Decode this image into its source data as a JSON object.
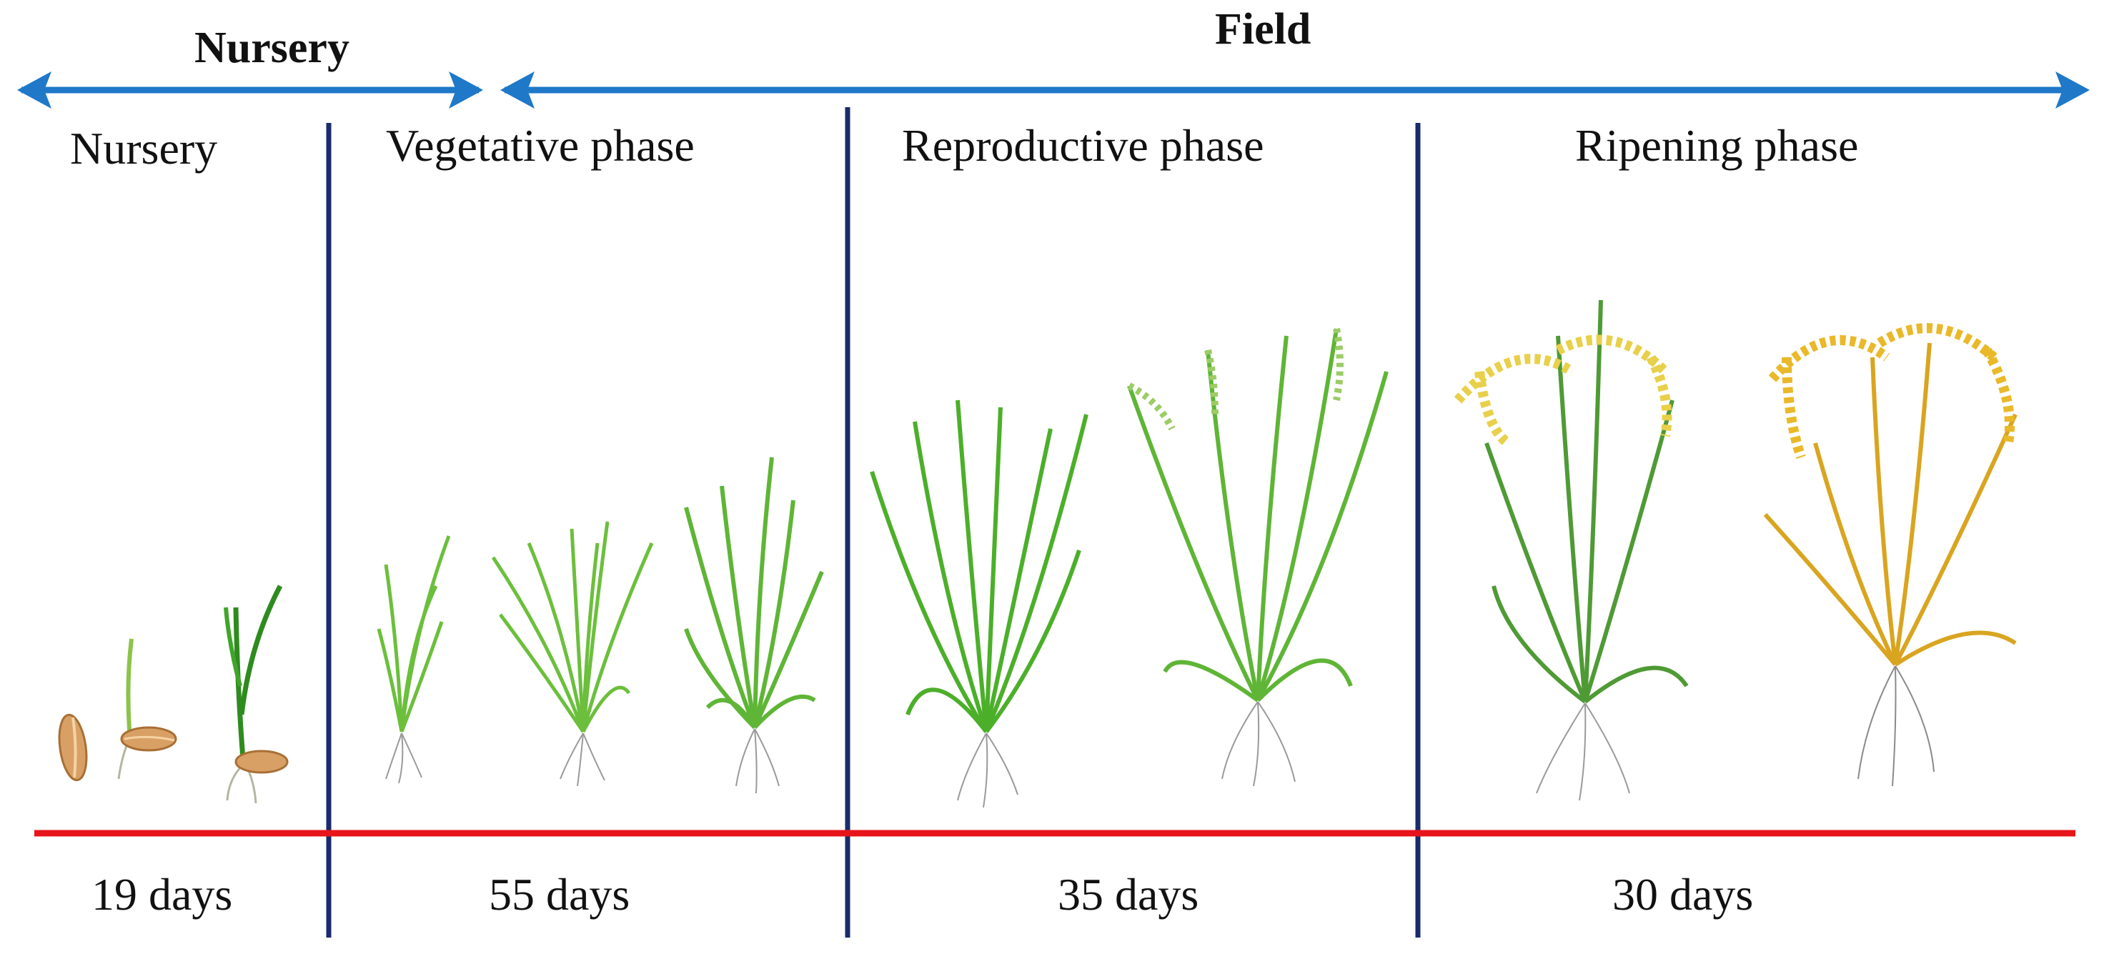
{
  "top_labels": {
    "nursery": "Nursery",
    "field": "Field"
  },
  "phases": [
    {
      "label": "Nursery",
      "duration": "19 days"
    },
    {
      "label": "Vegetative phase",
      "duration": "55 days"
    },
    {
      "label": "Reproductive phase",
      "duration": "35 days"
    },
    {
      "label": "Ripening phase",
      "duration": "30 days"
    }
  ],
  "colors": {
    "arrow": "#1f78c8",
    "divider": "#1a2a6c",
    "timeline": "#e8141c",
    "leaf_green": "#4caf2a",
    "leaf_dark": "#2e8b1e",
    "ripe_gold": "#d9a520",
    "grain_yellow": "#e8d04a",
    "root_gray": "#8a8a8a",
    "seed": "#d9a066"
  }
}
